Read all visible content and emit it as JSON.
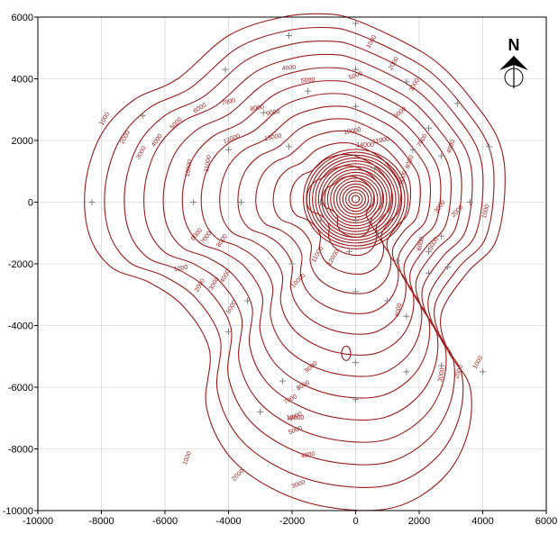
{
  "chart_data": {
    "type": "contour",
    "title": "",
    "xlabel": "",
    "ylabel": "",
    "xlim": [
      -10000,
      6000
    ],
    "ylim": [
      -10000,
      6000
    ],
    "x_ticks": [
      -10000,
      -8000,
      -6000,
      -4000,
      -2000,
      0,
      2000,
      4000,
      6000
    ],
    "y_ticks": [
      -10000,
      -8000,
      -6000,
      -4000,
      -2000,
      0,
      2000,
      4000,
      6000
    ],
    "grid": true,
    "line_color": "#9b1b1b",
    "marker_color": "#808080",
    "contour_labels": [
      {
        "text": "1000",
        "x": -7900,
        "y": 2700,
        "rot": -60
      },
      {
        "text": "2000",
        "x": -7250,
        "y": 2100,
        "rot": -60
      },
      {
        "text": "3000",
        "x": -6750,
        "y": 1600,
        "rot": -60
      },
      {
        "text": "4000",
        "x": -6250,
        "y": 2000,
        "rot": -55
      },
      {
        "text": "5000",
        "x": -5650,
        "y": 2550,
        "rot": -45
      },
      {
        "text": "6000",
        "x": -4900,
        "y": 3050,
        "rot": -30
      },
      {
        "text": "7000",
        "x": -4000,
        "y": 3250,
        "rot": -15
      },
      {
        "text": "8000",
        "x": -3100,
        "y": 3050,
        "rot": -10
      },
      {
        "text": "9000",
        "x": -2600,
        "y": 2900,
        "rot": -10
      },
      {
        "text": "4000",
        "x": -2100,
        "y": 4350,
        "rot": -5
      },
      {
        "text": "5000",
        "x": -1500,
        "y": 3950,
        "rot": -5
      },
      {
        "text": "10000",
        "x": -5250,
        "y": 1100,
        "rot": -80
      },
      {
        "text": "11000",
        "x": -4650,
        "y": 1250,
        "rot": -80
      },
      {
        "text": "12000",
        "x": -3900,
        "y": 2050,
        "rot": -20
      },
      {
        "text": "13000",
        "x": -2600,
        "y": 2100,
        "rot": -10
      },
      {
        "text": "14000",
        "x": 300,
        "y": 1850,
        "rot": 0
      },
      {
        "text": "10000",
        "x": -100,
        "y": 2300,
        "rot": -10
      },
      {
        "text": "11000",
        "x": 800,
        "y": 2000,
        "rot": -10
      },
      {
        "text": "1000",
        "x": 500,
        "y": 5200,
        "rot": -60
      },
      {
        "text": "2000",
        "x": 1200,
        "y": 4500,
        "rot": -60
      },
      {
        "text": "3000",
        "x": 1850,
        "y": 3800,
        "rot": -60
      },
      {
        "text": "5000",
        "x": 0,
        "y": 4100,
        "rot": -20
      },
      {
        "text": "6000",
        "x": 1400,
        "y": 2900,
        "rot": -40
      },
      {
        "text": "7000",
        "x": 2100,
        "y": 2000,
        "rot": -60
      },
      {
        "text": "8000",
        "x": 1700,
        "y": 1300,
        "rot": -70
      },
      {
        "text": "9000",
        "x": 1500,
        "y": 800,
        "rot": -75
      },
      {
        "text": "4000",
        "x": 3000,
        "y": 1800,
        "rot": -70
      },
      {
        "text": "2000",
        "x": 3200,
        "y": -300,
        "rot": -45
      },
      {
        "text": "3000",
        "x": 2650,
        "y": -150,
        "rot": -55
      },
      {
        "text": "1000",
        "x": 4100,
        "y": -300,
        "rot": -75
      },
      {
        "text": "5000",
        "x": 2450,
        "y": -1350,
        "rot": -60
      },
      {
        "text": "6000",
        "x": 2050,
        "y": -1350,
        "rot": -75
      },
      {
        "text": "4000",
        "x": 1350,
        "y": -3500,
        "rot": -80
      },
      {
        "text": "1000",
        "x": -5500,
        "y": -2150,
        "rot": -10
      },
      {
        "text": "2000",
        "x": -4900,
        "y": -2700,
        "rot": -60
      },
      {
        "text": "3000",
        "x": -4450,
        "y": -2650,
        "rot": -60
      },
      {
        "text": "4000",
        "x": -4100,
        "y": -2400,
        "rot": -60
      },
      {
        "text": "5000",
        "x": -3900,
        "y": -3400,
        "rot": -60
      },
      {
        "text": "6000",
        "x": -5000,
        "y": -1050,
        "rot": -50
      },
      {
        "text": "7000",
        "x": -4700,
        "y": -1150,
        "rot": -55
      },
      {
        "text": "8000",
        "x": -4200,
        "y": -1250,
        "rot": -55
      },
      {
        "text": "10000",
        "x": -1800,
        "y": -2550,
        "rot": -45
      },
      {
        "text": "12000",
        "x": -700,
        "y": -1800,
        "rot": -60
      },
      {
        "text": "11000",
        "x": -1200,
        "y": -1700,
        "rot": -60
      },
      {
        "text": "9000",
        "x": -1400,
        "y": -5350,
        "rot": -40
      },
      {
        "text": "8000",
        "x": -1650,
        "y": -5950,
        "rot": -30
      },
      {
        "text": "7000",
        "x": -2050,
        "y": -6400,
        "rot": -30
      },
      {
        "text": "6000",
        "x": -1900,
        "y": -6950,
        "rot": -25
      },
      {
        "text": "5000",
        "x": -1900,
        "y": -7400,
        "rot": -20
      },
      {
        "text": "4000",
        "x": -1500,
        "y": -8200,
        "rot": -10
      },
      {
        "text": "3000",
        "x": -1800,
        "y": -9150,
        "rot": -20
      },
      {
        "text": "2000",
        "x": -3700,
        "y": -8850,
        "rot": -45
      },
      {
        "text": "1000",
        "x": -5300,
        "y": -8300,
        "rot": -70
      },
      {
        "text": "3000",
        "x": 2700,
        "y": -5600,
        "rot": -80
      },
      {
        "text": "2000",
        "x": 3250,
        "y": -5500,
        "rot": -70
      },
      {
        "text": "1000",
        "x": 3850,
        "y": -5200,
        "rot": -60
      },
      {
        "text": "10000",
        "x": -1900,
        "y": -7000,
        "rot": 0
      }
    ],
    "sample_points": [
      [
        -8300,
        0
      ],
      [
        -6700,
        2800
      ],
      [
        -5100,
        0
      ],
      [
        -4100,
        4300
      ],
      [
        -3600,
        0
      ],
      [
        -2100,
        5400
      ],
      [
        -2900,
        2900
      ],
      [
        -1500,
        3600
      ],
      [
        0,
        5800
      ],
      [
        0,
        4300
      ],
      [
        1600,
        3900
      ],
      [
        0,
        3100
      ],
      [
        -4000,
        1700
      ],
      [
        -2100,
        1800
      ],
      [
        2300,
        2400
      ],
      [
        1800,
        1700
      ],
      [
        2700,
        1500
      ],
      [
        3200,
        3200
      ],
      [
        4200,
        1800
      ],
      [
        3600,
        0
      ],
      [
        2700,
        -1100
      ],
      [
        2300,
        -1600
      ],
      [
        2900,
        -2100
      ],
      [
        1000,
        -3200
      ],
      [
        1600,
        -3700
      ],
      [
        2300,
        -2300
      ],
      [
        -1100,
        0
      ],
      [
        0,
        -600
      ],
      [
        600,
        1100
      ],
      [
        -1100,
        -600
      ],
      [
        -2000,
        -2000
      ],
      [
        -3400,
        -3200
      ],
      [
        -4000,
        -4200
      ],
      [
        -2300,
        -5800
      ],
      [
        -3000,
        -6800
      ],
      [
        0,
        -2900
      ],
      [
        0,
        -5200
      ],
      [
        0,
        -6400
      ],
      [
        1600,
        -5500
      ],
      [
        2700,
        -5300
      ],
      [
        4000,
        -5500
      ],
      [
        -200,
        -1600
      ],
      [
        700,
        -1000
      ],
      [
        1300,
        -1900
      ]
    ],
    "north_arrow": "N"
  }
}
